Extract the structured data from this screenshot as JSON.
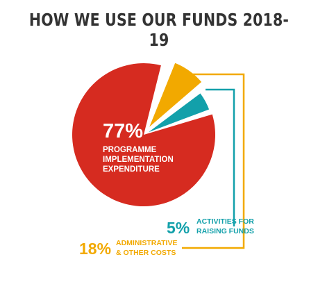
{
  "chart_data": {
    "type": "pie",
    "title": "HOW WE USE OUR FUNDS 2018-19",
    "slices": [
      {
        "value": 77,
        "pct_label": "77%",
        "label_lines": [
          "PROGRAMME",
          "IMPLEMENTATION",
          "EXPENDITURE"
        ],
        "color": "#d62b20",
        "exploded": false
      },
      {
        "value": 18,
        "pct_label": "18%",
        "label_lines": [
          "ADMINISTRATIVE",
          "& OTHER COSTS"
        ],
        "color": "#f2a900",
        "exploded": true
      },
      {
        "value": 5,
        "pct_label": "5%",
        "label_lines": [
          "ACTIVITIES FOR",
          "RAISING FUNDS"
        ],
        "color": "#12a0aa",
        "exploded": true
      }
    ],
    "legend": "none"
  }
}
